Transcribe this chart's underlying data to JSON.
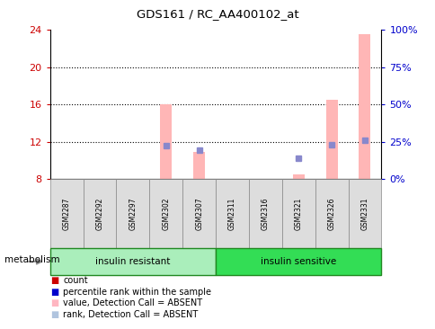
{
  "title": "GDS161 / RC_AA400102_at",
  "samples": [
    "GSM2287",
    "GSM2292",
    "GSM2297",
    "GSM2302",
    "GSM2307",
    "GSM2311",
    "GSM2316",
    "GSM2321",
    "GSM2326",
    "GSM2331"
  ],
  "ylim_left": [
    8,
    24
  ],
  "ylim_right": [
    0,
    100
  ],
  "yticks_left": [
    8,
    12,
    16,
    20,
    24
  ],
  "yticks_right": [
    0,
    25,
    50,
    75,
    100
  ],
  "yticklabels_right": [
    "0%",
    "25%",
    "50%",
    "75%",
    "100%"
  ],
  "pink_bars": {
    "GSM2302": [
      8,
      16.0
    ],
    "GSM2307": [
      8,
      10.9
    ],
    "GSM2321": [
      8,
      8.5
    ],
    "GSM2326": [
      8,
      16.5
    ],
    "GSM2331": [
      8,
      23.5
    ]
  },
  "blue_squares": {
    "GSM2302": 11.6,
    "GSM2307": 11.1,
    "GSM2321": 10.3,
    "GSM2326": 11.7,
    "GSM2331": 12.2
  },
  "group1_count": 5,
  "group2_count": 5,
  "group1_label": "insulin resistant",
  "group2_label": "insulin sensitive",
  "group1_color": "#AAEEBB",
  "group2_color": "#33DD55",
  "metabolism_label": "metabolism",
  "legend_colors": [
    "#CC0000",
    "#0000CC",
    "#FFB6C1",
    "#B0C4DE"
  ],
  "legend_labels": [
    "count",
    "percentile rank within the sample",
    "value, Detection Call = ABSENT",
    "rank, Detection Call = ABSENT"
  ],
  "pink_color": "#FFB6B6",
  "blue_color": "#8888CC",
  "tick_color_left": "#CC0000",
  "tick_color_right": "#0000CC",
  "bar_width": 0.35,
  "grid_yticks": [
    12,
    16,
    20
  ]
}
